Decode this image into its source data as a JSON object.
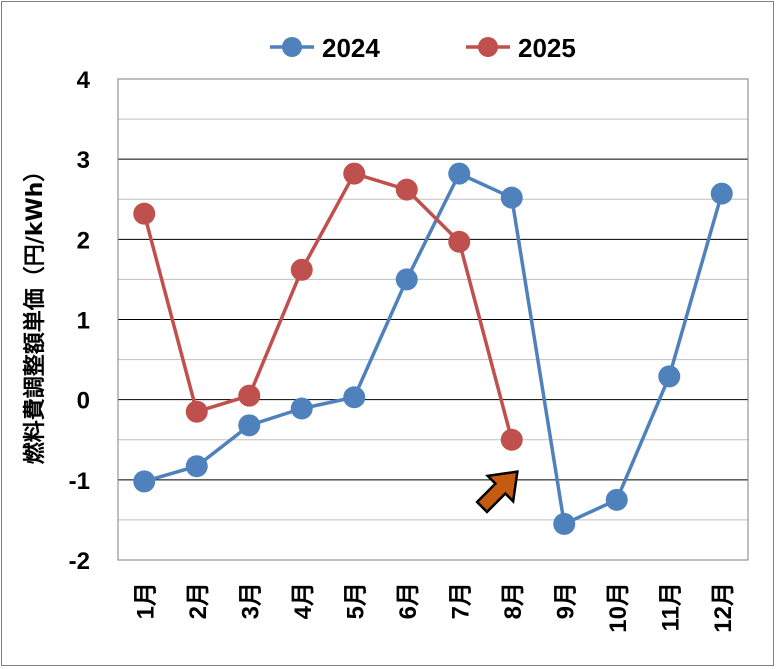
{
  "chart_data": {
    "type": "line",
    "title": "",
    "xlabel": "",
    "ylabel": "燃料費調整額単価（円/kWh）",
    "categories": [
      "1月",
      "2月",
      "3月",
      "4月",
      "5月",
      "6月",
      "7月",
      "8月",
      "9月",
      "10月",
      "11月",
      "12月"
    ],
    "ylim": [
      -2,
      4
    ],
    "yticks": [
      "4",
      "3",
      "2",
      "1",
      "0",
      "-1",
      "-2"
    ],
    "grid": "major and minor horizontal",
    "legend_position": "top",
    "series": [
      {
        "name": "2024",
        "color": "#4f81bd",
        "values": [
          -1.02,
          -0.83,
          -0.32,
          -0.11,
          0.03,
          1.5,
          2.82,
          2.52,
          -1.55,
          -1.25,
          0.29,
          2.57
        ]
      },
      {
        "name": "2025",
        "color": "#c0504d",
        "values": [
          2.32,
          -0.15,
          0.05,
          1.62,
          2.82,
          2.62,
          1.97,
          -0.5,
          null,
          null,
          null,
          null
        ]
      }
    ],
    "annotation": {
      "type": "arrow",
      "color": "#c55a11",
      "points_to": "8月",
      "icon": "up-right-arrow-icon"
    }
  }
}
